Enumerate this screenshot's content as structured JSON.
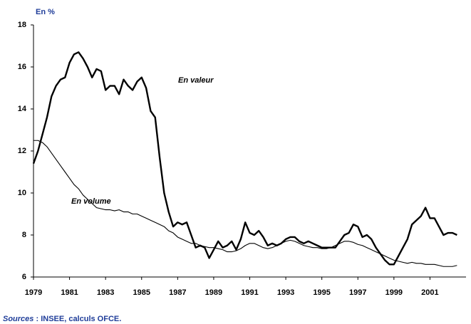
{
  "chart_data": {
    "type": "line",
    "ylabel": "En %",
    "annotations": [
      "En valeur",
      "En volume"
    ],
    "source": {
      "label": "Sources",
      "text": " : INSEE, calculs OFCE."
    },
    "x": [
      1979,
      1979.25,
      1979.5,
      1979.75,
      1980,
      1980.25,
      1980.5,
      1980.75,
      1981,
      1981.25,
      1981.5,
      1981.75,
      1982,
      1982.25,
      1982.5,
      1982.75,
      1983,
      1983.25,
      1983.5,
      1983.75,
      1984,
      1984.25,
      1984.5,
      1984.75,
      1985,
      1985.25,
      1985.5,
      1985.75,
      1986,
      1986.25,
      1986.5,
      1986.75,
      1987,
      1987.25,
      1987.5,
      1987.75,
      1988,
      1988.25,
      1988.5,
      1988.75,
      1989,
      1989.25,
      1989.5,
      1989.75,
      1990,
      1990.25,
      1990.5,
      1990.75,
      1991,
      1991.25,
      1991.5,
      1991.75,
      1992,
      1992.25,
      1992.5,
      1992.75,
      1993,
      1993.25,
      1993.5,
      1993.75,
      1994,
      1994.25,
      1994.5,
      1994.75,
      1995,
      1995.25,
      1995.5,
      1995.75,
      1996,
      1996.25,
      1996.5,
      1996.75,
      1997,
      1997.25,
      1997.5,
      1997.75,
      1998,
      1998.25,
      1998.5,
      1998.75,
      1999,
      1999.25,
      1999.5,
      1999.75,
      2000,
      2000.25,
      2000.5,
      2000.75,
      2001,
      2001.25,
      2001.5,
      2001.75,
      2002,
      2002.25,
      2002.5
    ],
    "series": [
      {
        "name": "En valeur",
        "color": "#000000",
        "width": 2.4,
        "values": [
          11.4,
          12.0,
          12.8,
          13.6,
          14.6,
          15.1,
          15.4,
          15.5,
          16.2,
          16.6,
          16.7,
          16.4,
          16.0,
          15.5,
          15.9,
          15.8,
          14.9,
          15.1,
          15.1,
          14.7,
          15.4,
          15.1,
          14.9,
          15.3,
          15.5,
          15.0,
          13.9,
          13.6,
          11.7,
          10.0,
          9.1,
          8.4,
          8.6,
          8.5,
          8.6,
          8.0,
          7.4,
          7.5,
          7.4,
          6.9,
          7.3,
          7.7,
          7.4,
          7.5,
          7.7,
          7.3,
          7.8,
          8.6,
          8.1,
          8.0,
          8.2,
          7.9,
          7.5,
          7.6,
          7.5,
          7.6,
          7.8,
          7.9,
          7.9,
          7.7,
          7.6,
          7.7,
          7.6,
          7.5,
          7.4,
          7.4,
          7.4,
          7.4,
          7.7,
          8.0,
          8.1,
          8.5,
          8.4,
          7.9,
          8.0,
          7.8,
          7.4,
          7.1,
          6.8,
          6.6,
          6.6,
          7.0,
          7.4,
          7.8,
          8.5,
          8.7,
          8.9,
          9.3,
          8.8,
          8.8,
          8.4,
          8.0,
          8.1,
          8.1,
          8.0
        ]
      },
      {
        "name": "En volume",
        "color": "#000000",
        "width": 1.1,
        "values": [
          12.5,
          12.5,
          12.4,
          12.2,
          11.9,
          11.6,
          11.3,
          11.0,
          10.7,
          10.4,
          10.2,
          9.9,
          9.7,
          9.5,
          9.3,
          9.25,
          9.2,
          9.2,
          9.15,
          9.2,
          9.1,
          9.1,
          9.0,
          9.0,
          8.9,
          8.8,
          8.7,
          8.6,
          8.5,
          8.4,
          8.2,
          8.1,
          7.9,
          7.8,
          7.7,
          7.6,
          7.6,
          7.5,
          7.45,
          7.4,
          7.4,
          7.35,
          7.3,
          7.2,
          7.2,
          7.25,
          7.35,
          7.5,
          7.6,
          7.6,
          7.5,
          7.4,
          7.35,
          7.4,
          7.5,
          7.6,
          7.7,
          7.75,
          7.7,
          7.6,
          7.5,
          7.45,
          7.4,
          7.4,
          7.35,
          7.35,
          7.4,
          7.5,
          7.6,
          7.7,
          7.7,
          7.65,
          7.55,
          7.5,
          7.4,
          7.3,
          7.2,
          7.1,
          7.0,
          6.9,
          6.8,
          6.75,
          6.7,
          6.65,
          6.7,
          6.65,
          6.65,
          6.6,
          6.6,
          6.6,
          6.55,
          6.5,
          6.5,
          6.5,
          6.55
        ]
      }
    ],
    "xlim": [
      1979,
      2003
    ],
    "xticks": [
      1979,
      1981,
      1983,
      1985,
      1987,
      1989,
      1991,
      1993,
      1995,
      1997,
      1999,
      2001
    ],
    "ylim": [
      6,
      18
    ],
    "yticks": [
      6,
      8,
      10,
      12,
      14,
      16,
      18
    ],
    "grid": false
  }
}
